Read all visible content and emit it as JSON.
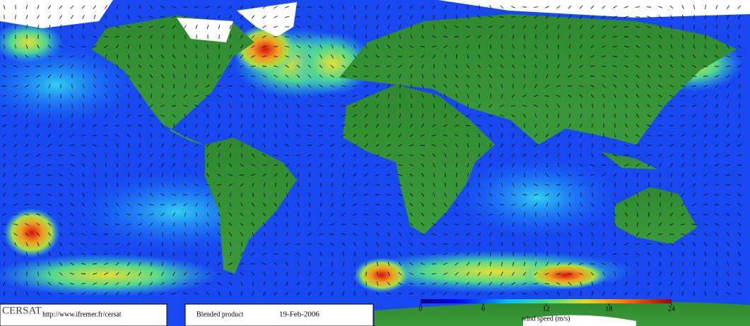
{
  "footer": {
    "logo": "CERSAT",
    "url": "http://www.ifremer.fr/cersat",
    "product": "Blended product",
    "date": "19-Feb-2006"
  },
  "colorbar": {
    "label": "wind speed (m/s)",
    "range": [
      0,
      24
    ],
    "ticks": [
      0,
      6,
      12,
      18,
      24
    ]
  }
}
